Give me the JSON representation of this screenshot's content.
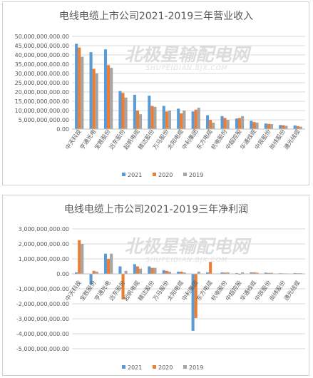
{
  "colors": {
    "s2021": "#5b9bd5",
    "s2020": "#ed7d31",
    "s2019": "#a5a5a5",
    "grid": "#d9d9d9",
    "axis": "#bfbfbf"
  },
  "watermark": {
    "main": "北极星输配电网",
    "sub": "SHUPEIDIAN.BJX.COM"
  },
  "chart_data": [
    {
      "type": "bar",
      "title": "电线电缆上市公司2021-2019三年营业收入",
      "categories": [
        "中天科技",
        "亨通光电",
        "宝胜股份",
        "远东股份",
        "起帆电缆",
        "精达股份",
        "万马股份",
        "太阳电缆",
        "中利集团",
        "东方电缆",
        "杭电股份",
        "中超控股",
        "华通线缆",
        "中辰股份",
        "尚纬股份",
        "通光线缆"
      ],
      "series": [
        {
          "name": "2021",
          "values": [
            46000000000,
            41500000000,
            43000000000,
            20500000000,
            18500000000,
            18000000000,
            12500000000,
            11000000000,
            9500000000,
            7500000000,
            7000000000,
            5700000000,
            4500000000,
            3000000000,
            2200000000,
            2000000000
          ]
        },
        {
          "name": "2020",
          "values": [
            44000000000,
            32500000000,
            34500000000,
            19500000000,
            10000000000,
            12500000000,
            9500000000,
            8500000000,
            10500000000,
            5000000000,
            6000000000,
            6000000000,
            3800000000,
            2800000000,
            2100000000,
            1600000000
          ]
        },
        {
          "name": "2019",
          "values": [
            39000000000,
            30000000000,
            33000000000,
            17000000000,
            8000000000,
            12000000000,
            10000000000,
            10000000000,
            11500000000,
            3500000000,
            5000000000,
            7000000000,
            3500000000,
            2700000000,
            1800000000,
            1300000000
          ]
        }
      ],
      "ylim": [
        0,
        50000000000
      ],
      "yticks": [
        "0.00",
        "5,000,000,000.00",
        "10,000,000,000.00",
        "15,000,000,000.00",
        "20,000,000,000.00",
        "25,000,000,000.00",
        "30,000,000,000.00",
        "35,000,000,000.00",
        "40,000,000,000.00",
        "45,000,000,000.00",
        "50,000,000,000.00"
      ],
      "grid": true,
      "legend_position": "bottom"
    },
    {
      "type": "bar",
      "title": "电线电缆上市公司2021-2019三年净利润",
      "categories": [
        "中天科技",
        "宝胜股份",
        "亨通光电",
        "远东股份",
        "起帆电缆",
        "精达股份",
        "万马股份",
        "太阳电缆",
        "中利集团",
        "东方电缆",
        "杭电股份",
        "中超控股",
        "华通线缆",
        "中辰股份",
        "尚纬股份",
        "通光线缆"
      ],
      "series": [
        {
          "name": "2021",
          "values": [
            100000000,
            -700000000,
            1350000000,
            500000000,
            650000000,
            500000000,
            250000000,
            150000000,
            -3800000000,
            100000000,
            100000000,
            50000000,
            100000000,
            80000000,
            40000000,
            50000000
          ]
        },
        {
          "name": "2020",
          "values": [
            2250000000,
            200000000,
            1000000000,
            -1700000000,
            500000000,
            400000000,
            200000000,
            150000000,
            -2950000000,
            800000000,
            80000000,
            -50000000,
            100000000,
            60000000,
            30000000,
            40000000
          ]
        },
        {
          "name": "2019",
          "values": [
            2000000000,
            150000000,
            1350000000,
            200000000,
            350000000,
            400000000,
            150000000,
            100000000,
            150000000,
            0,
            100000000,
            100000000,
            80000000,
            70000000,
            30000000,
            40000000
          ]
        }
      ],
      "ylim": [
        -5000000000,
        3000000000
      ],
      "yticks": [
        "-5,000,000,000.00",
        "-4,000,000,000.00",
        "-3,000,000,000.00",
        "-2,000,000,000.00",
        "-1,000,000,000.00",
        "0.00",
        "1,000,000,000.00",
        "2,000,000,000.00",
        "3,000,000,000.00"
      ],
      "grid": true,
      "legend_position": "bottom"
    }
  ]
}
